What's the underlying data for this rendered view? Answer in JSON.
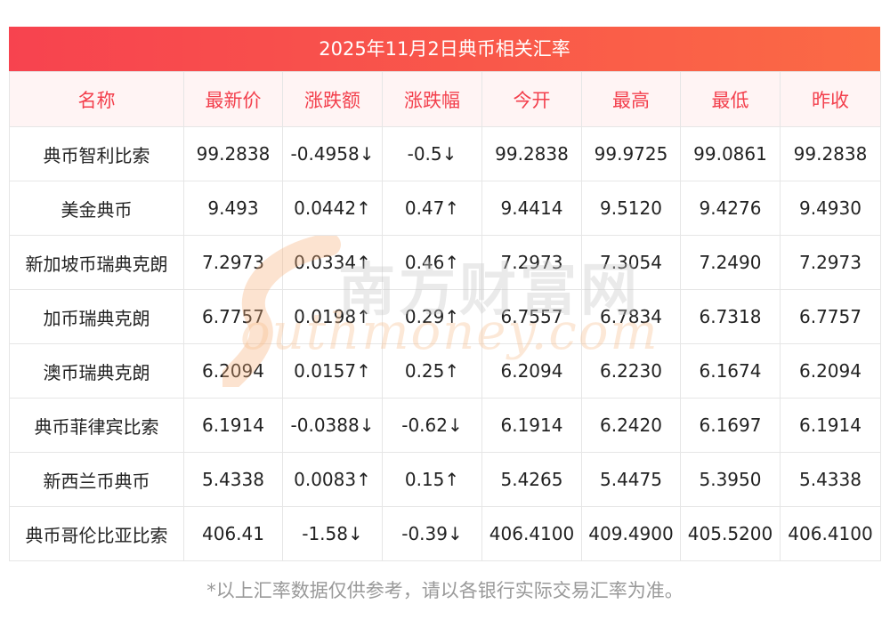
{
  "title": "2025年11月2日典币相关汇率",
  "columns": [
    "名称",
    "最新价",
    "涨跌额",
    "涨跌幅",
    "今开",
    "最高",
    "最低",
    "昨收"
  ],
  "rows": [
    {
      "name": "典币智利比索",
      "latest": "99.2838",
      "change": "-0.4958↓",
      "pct": "-0.5↓",
      "open": "99.2838",
      "high": "99.9725",
      "low": "99.0861",
      "prev": "99.2838",
      "direction": "down"
    },
    {
      "name": "美金典币",
      "latest": "9.493",
      "change": "0.0442↑",
      "pct": "0.47↑",
      "open": "9.4414",
      "high": "9.5120",
      "low": "9.4276",
      "prev": "9.4930",
      "direction": "up"
    },
    {
      "name": "新加坡币瑞典克朗",
      "latest": "7.2973",
      "change": "0.0334↑",
      "pct": "0.46↑",
      "open": "7.2973",
      "high": "7.3054",
      "low": "7.2490",
      "prev": "7.2973",
      "direction": "up"
    },
    {
      "name": "加币瑞典克朗",
      "latest": "6.7757",
      "change": "0.0198↑",
      "pct": "0.29↑",
      "open": "6.7557",
      "high": "6.7834",
      "low": "6.7318",
      "prev": "6.7757",
      "direction": "up"
    },
    {
      "name": "澳币瑞典克朗",
      "latest": "6.2094",
      "change": "0.0157↑",
      "pct": "0.25↑",
      "open": "6.2094",
      "high": "6.2230",
      "low": "6.1674",
      "prev": "6.2094",
      "direction": "up"
    },
    {
      "name": "典币菲律宾比索",
      "latest": "6.1914",
      "change": "-0.0388↓",
      "pct": "-0.62↓",
      "open": "6.1914",
      "high": "6.2420",
      "low": "6.1697",
      "prev": "6.1914",
      "direction": "down"
    },
    {
      "name": "新西兰币典币",
      "latest": "5.4338",
      "change": "0.0083↑",
      "pct": "0.15↑",
      "open": "5.4265",
      "high": "5.4475",
      "low": "5.3950",
      "prev": "5.4338",
      "direction": "up"
    },
    {
      "name": "典币哥伦比亚比索",
      "latest": "406.41",
      "change": "-1.58↓",
      "pct": "-0.39↓",
      "open": "406.4100",
      "high": "409.4900",
      "low": "405.5200",
      "prev": "406.4100",
      "direction": "down"
    }
  ],
  "watermark": {
    "cn": "南方财富网",
    "en": "outhmoney.com"
  },
  "footnote": "*以上汇率数据仅供参考，请以各银行实际交易汇率为准。",
  "colors": {
    "header_accent": "#f33f4c",
    "up": "#e8202a",
    "down": "#1c8a1c",
    "footnote": "#999999"
  }
}
